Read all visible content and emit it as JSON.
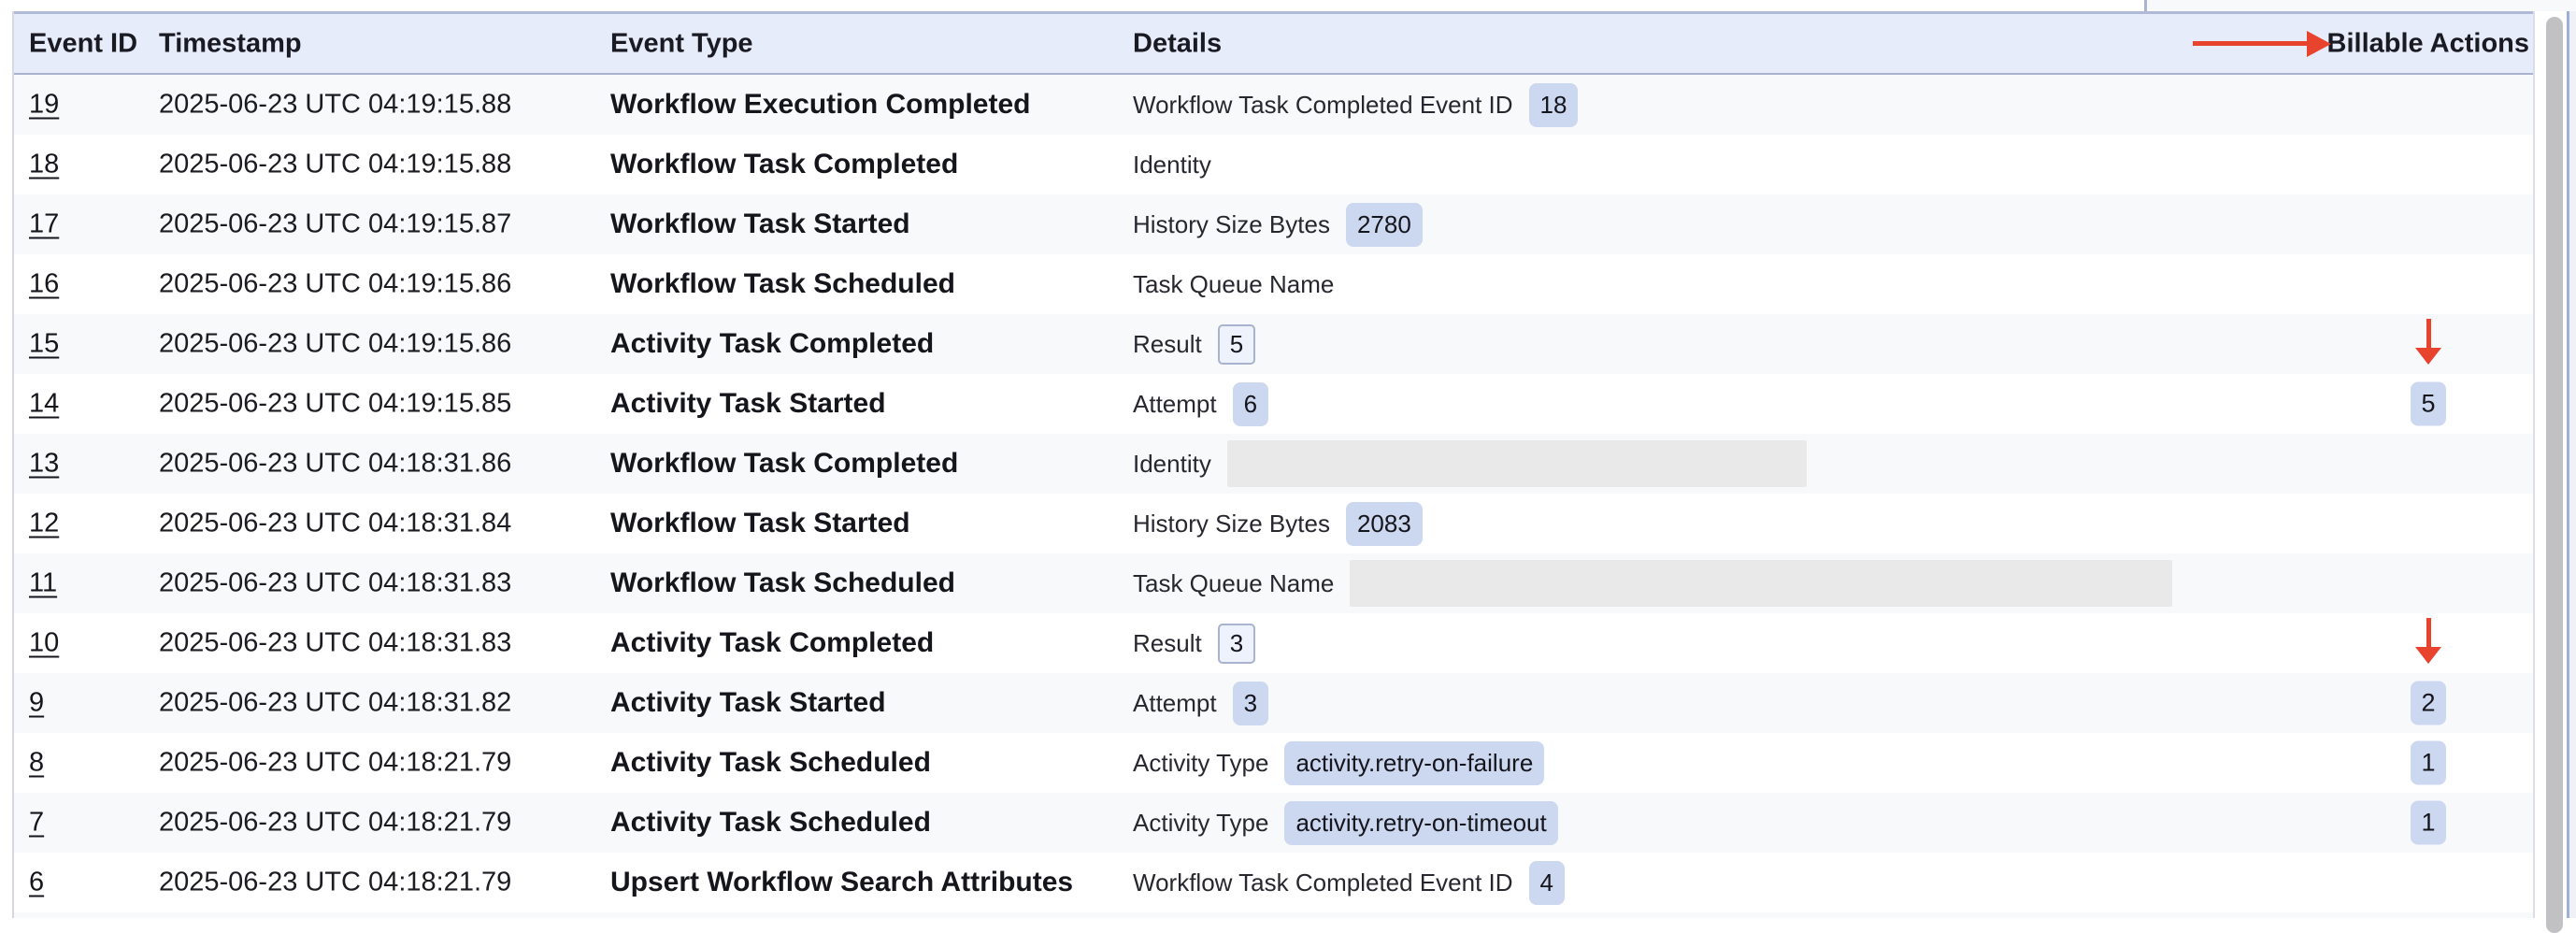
{
  "header": {
    "event_id": "Event ID",
    "timestamp": "Timestamp",
    "event_type": "Event Type",
    "details": "Details",
    "billable_actions": "Billable Actions"
  },
  "annotations": {
    "arrow_color": "#e8432d",
    "header_arrow": "red arrow pointing right at Billable Actions column header",
    "row_down_arrows": [
      "event 15 row points down to billable value 5",
      "event 10 row points down to billable value 2"
    ]
  },
  "colors": {
    "header_bg": "#e7ecfb",
    "header_border": "#a9b2cf",
    "row_alt_bg": "#f8f9fb",
    "row_bg": "#ffffff",
    "badge_filled_bg": "#ccd7f0",
    "badge_bordered_border": "#a9b3cf",
    "badge_bordered_bg": "#eef2fc",
    "redacted_bg": "#e9e9ea",
    "annotation_red": "#e8432d",
    "scrollbar_thumb": "#c1c1c3",
    "panel_edge_blue": "#9fb0d8"
  },
  "table": {
    "rows": [
      {
        "id": "19",
        "timestamp": "2025-06-23 UTC 04:19:15.88",
        "event_type": "Workflow Execution Completed",
        "detail_label": "Workflow Task Completed Event ID",
        "detail_value": "18",
        "value_style": "filled",
        "billable": null,
        "annotation": null,
        "redacted_width": 0
      },
      {
        "id": "18",
        "timestamp": "2025-06-23 UTC 04:19:15.88",
        "event_type": "Workflow Task Completed",
        "detail_label": "Identity",
        "detail_value": "",
        "value_style": "none",
        "billable": null,
        "annotation": null,
        "redacted_width": 0
      },
      {
        "id": "17",
        "timestamp": "2025-06-23 UTC 04:19:15.87",
        "event_type": "Workflow Task Started",
        "detail_label": "History Size Bytes",
        "detail_value": "2780",
        "value_style": "filled",
        "billable": null,
        "annotation": null,
        "redacted_width": 0
      },
      {
        "id": "16",
        "timestamp": "2025-06-23 UTC 04:19:15.86",
        "event_type": "Workflow Task Scheduled",
        "detail_label": "Task Queue Name",
        "detail_value": "",
        "value_style": "none",
        "billable": null,
        "annotation": null,
        "redacted_width": 0
      },
      {
        "id": "15",
        "timestamp": "2025-06-23 UTC 04:19:15.86",
        "event_type": "Activity Task Completed",
        "detail_label": "Result",
        "detail_value": "5",
        "value_style": "bordered",
        "billable": null,
        "annotation": "down-arrow",
        "redacted_width": 0
      },
      {
        "id": "14",
        "timestamp": "2025-06-23 UTC 04:19:15.85",
        "event_type": "Activity Task Started",
        "detail_label": "Attempt",
        "detail_value": "6",
        "value_style": "filled",
        "billable": "5",
        "annotation": null,
        "redacted_width": 0
      },
      {
        "id": "13",
        "timestamp": "2025-06-23 UTC 04:18:31.86",
        "event_type": "Workflow Task Completed",
        "detail_label": "Identity",
        "detail_value": "",
        "value_style": "redacted",
        "billable": null,
        "annotation": null,
        "redacted_width": 620
      },
      {
        "id": "12",
        "timestamp": "2025-06-23 UTC 04:18:31.84",
        "event_type": "Workflow Task Started",
        "detail_label": "History Size Bytes",
        "detail_value": "2083",
        "value_style": "filled",
        "billable": null,
        "annotation": null,
        "redacted_width": 0
      },
      {
        "id": "11",
        "timestamp": "2025-06-23 UTC 04:18:31.83",
        "event_type": "Workflow Task Scheduled",
        "detail_label": "Task Queue Name",
        "detail_value": "",
        "value_style": "redacted",
        "billable": null,
        "annotation": null,
        "redacted_width": 880
      },
      {
        "id": "10",
        "timestamp": "2025-06-23 UTC 04:18:31.83",
        "event_type": "Activity Task Completed",
        "detail_label": "Result",
        "detail_value": "3",
        "value_style": "bordered",
        "billable": null,
        "annotation": "down-arrow",
        "redacted_width": 0
      },
      {
        "id": "9",
        "timestamp": "2025-06-23 UTC 04:18:31.82",
        "event_type": "Activity Task Started",
        "detail_label": "Attempt",
        "detail_value": "3",
        "value_style": "filled",
        "billable": "2",
        "annotation": null,
        "redacted_width": 0
      },
      {
        "id": "8",
        "timestamp": "2025-06-23 UTC 04:18:21.79",
        "event_type": "Activity Task Scheduled",
        "detail_label": "Activity Type",
        "detail_value": "activity.retry-on-failure",
        "value_style": "filled",
        "billable": "1",
        "annotation": null,
        "redacted_width": 0
      },
      {
        "id": "7",
        "timestamp": "2025-06-23 UTC 04:18:21.79",
        "event_type": "Activity Task Scheduled",
        "detail_label": "Activity Type",
        "detail_value": "activity.retry-on-timeout",
        "value_style": "filled",
        "billable": "1",
        "annotation": null,
        "redacted_width": 0
      },
      {
        "id": "6",
        "timestamp": "2025-06-23 UTC 04:18:21.79",
        "event_type": "Upsert Workflow Search Attributes",
        "detail_label": "Workflow Task Completed Event ID",
        "detail_value": "4",
        "value_style": "filled",
        "billable": null,
        "annotation": null,
        "redacted_width": 0
      }
    ]
  }
}
